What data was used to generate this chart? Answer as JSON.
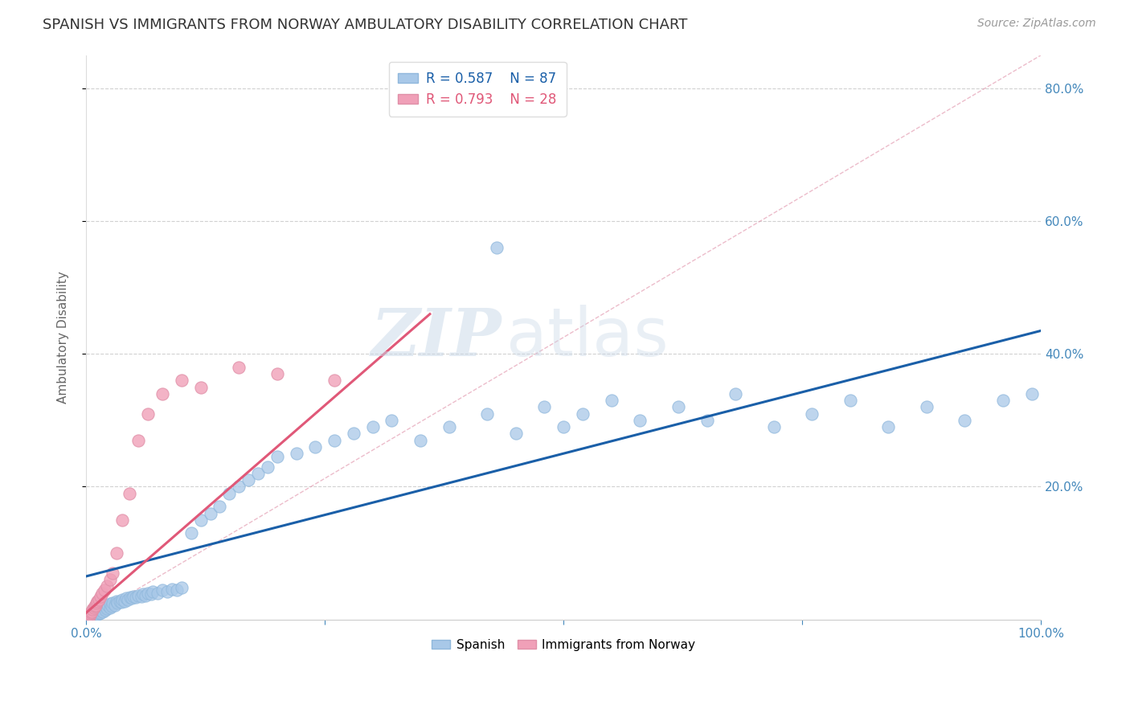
{
  "title": "SPANISH VS IMMIGRANTS FROM NORWAY AMBULATORY DISABILITY CORRELATION CHART",
  "source": "Source: ZipAtlas.com",
  "ylabel": "Ambulatory Disability",
  "xlim": [
    0,
    1.0
  ],
  "ylim": [
    0,
    0.85
  ],
  "blue_color": "#A8C8E8",
  "blue_edge_color": "#90B8DC",
  "pink_color": "#F0A0B8",
  "pink_edge_color": "#E090A8",
  "blue_line_color": "#1A5FA8",
  "pink_line_color": "#E05878",
  "diag_line_color": "#E090A8",
  "watermark_color": "#C8D8E8",
  "background_color": "#FFFFFF",
  "grid_color": "#CCCCCC",
  "title_color": "#333333",
  "axis_label_color": "#666666",
  "tick_color": "#4488BB",
  "blue_line_x0": 0.0,
  "blue_line_y0": 0.065,
  "blue_line_x1": 1.0,
  "blue_line_y1": 0.435,
  "pink_line_x0": 0.0,
  "pink_line_y0": 0.01,
  "pink_line_x1": 0.36,
  "pink_line_y1": 0.46,
  "blue_x": [
    0.005,
    0.007,
    0.008,
    0.009,
    0.01,
    0.01,
    0.012,
    0.013,
    0.013,
    0.014,
    0.015,
    0.015,
    0.016,
    0.017,
    0.018,
    0.019,
    0.02,
    0.02,
    0.022,
    0.023,
    0.025,
    0.025,
    0.027,
    0.028,
    0.03,
    0.032,
    0.033,
    0.035,
    0.037,
    0.038,
    0.04,
    0.042,
    0.044,
    0.046,
    0.048,
    0.05,
    0.052,
    0.055,
    0.058,
    0.06,
    0.062,
    0.065,
    0.068,
    0.07,
    0.075,
    0.08,
    0.085,
    0.09,
    0.095,
    0.1,
    0.11,
    0.12,
    0.13,
    0.14,
    0.15,
    0.16,
    0.17,
    0.18,
    0.19,
    0.2,
    0.22,
    0.24,
    0.26,
    0.28,
    0.3,
    0.32,
    0.35,
    0.38,
    0.42,
    0.45,
    0.48,
    0.5,
    0.52,
    0.55,
    0.58,
    0.62,
    0.65,
    0.68,
    0.72,
    0.76,
    0.8,
    0.84,
    0.88,
    0.92,
    0.96,
    0.99,
    0.43
  ],
  "blue_y": [
    0.005,
    0.008,
    0.006,
    0.01,
    0.007,
    0.012,
    0.008,
    0.01,
    0.015,
    0.009,
    0.011,
    0.016,
    0.013,
    0.015,
    0.012,
    0.018,
    0.014,
    0.02,
    0.016,
    0.022,
    0.018,
    0.024,
    0.02,
    0.025,
    0.022,
    0.027,
    0.025,
    0.028,
    0.026,
    0.03,
    0.028,
    0.032,
    0.03,
    0.033,
    0.032,
    0.035,
    0.033,
    0.036,
    0.035,
    0.038,
    0.036,
    0.04,
    0.038,
    0.042,
    0.04,
    0.044,
    0.042,
    0.046,
    0.044,
    0.048,
    0.13,
    0.15,
    0.16,
    0.17,
    0.19,
    0.2,
    0.21,
    0.22,
    0.23,
    0.245,
    0.25,
    0.26,
    0.27,
    0.28,
    0.29,
    0.3,
    0.27,
    0.29,
    0.31,
    0.28,
    0.32,
    0.29,
    0.31,
    0.33,
    0.3,
    0.32,
    0.3,
    0.34,
    0.29,
    0.31,
    0.33,
    0.29,
    0.32,
    0.3,
    0.33,
    0.34,
    0.56
  ],
  "pink_x": [
    0.003,
    0.004,
    0.005,
    0.006,
    0.007,
    0.008,
    0.009,
    0.01,
    0.011,
    0.012,
    0.013,
    0.015,
    0.017,
    0.019,
    0.022,
    0.025,
    0.028,
    0.032,
    0.038,
    0.045,
    0.055,
    0.065,
    0.08,
    0.1,
    0.12,
    0.16,
    0.2,
    0.26
  ],
  "pink_y": [
    0.005,
    0.008,
    0.01,
    0.012,
    0.015,
    0.018,
    0.02,
    0.022,
    0.025,
    0.028,
    0.03,
    0.035,
    0.04,
    0.045,
    0.05,
    0.06,
    0.07,
    0.1,
    0.15,
    0.19,
    0.27,
    0.31,
    0.34,
    0.36,
    0.35,
    0.38,
    0.37,
    0.36
  ]
}
